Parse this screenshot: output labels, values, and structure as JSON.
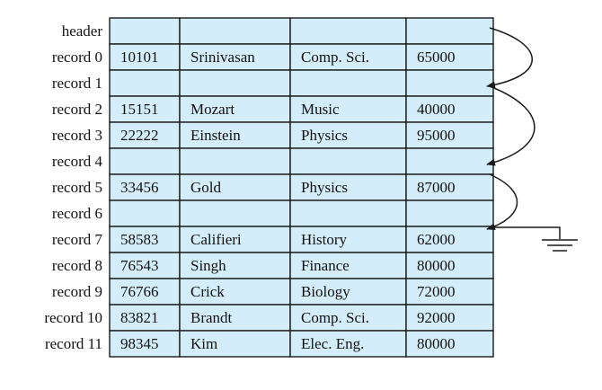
{
  "colors": {
    "cell_fill": "#d3eefa",
    "cell_border": "#1a1a1a",
    "pointer_line": "#1a1a1a"
  },
  "header_label": "header",
  "records": [
    {
      "label": "record 0",
      "cells": [
        "10101",
        "Srinivasan",
        "Comp. Sci.",
        "65000"
      ]
    },
    {
      "label": "record 1",
      "cells": [
        "",
        "",
        "",
        ""
      ]
    },
    {
      "label": "record 2",
      "cells": [
        "15151",
        "Mozart",
        "Music",
        "40000"
      ]
    },
    {
      "label": "record 3",
      "cells": [
        "22222",
        "Einstein",
        "Physics",
        "95000"
      ]
    },
    {
      "label": "record 4",
      "cells": [
        "",
        "",
        "",
        ""
      ]
    },
    {
      "label": "record 5",
      "cells": [
        "33456",
        "Gold",
        "Physics",
        "87000"
      ]
    },
    {
      "label": "record 6",
      "cells": [
        "",
        "",
        "",
        ""
      ]
    },
    {
      "label": "record 7",
      "cells": [
        "58583",
        "Califieri",
        "History",
        "62000"
      ]
    },
    {
      "label": "record 8",
      "cells": [
        "76543",
        "Singh",
        "Finance",
        "80000"
      ]
    },
    {
      "label": "record 9",
      "cells": [
        "76766",
        "Crick",
        "Biology",
        "72000"
      ]
    },
    {
      "label": "record 10",
      "cells": [
        "83821",
        "Brandt",
        "Comp. Sci.",
        "92000"
      ]
    },
    {
      "label": "record 11",
      "cells": [
        "98345",
        "Kim",
        "Elec. Eng.",
        "80000"
      ]
    }
  ],
  "free_list_links": [
    {
      "from": "header",
      "to": "record 1"
    },
    {
      "from": "record 1",
      "to": "record 4"
    },
    {
      "from": "record 4",
      "to": "record 6"
    },
    {
      "from": "record 6",
      "to": "ground"
    }
  ]
}
